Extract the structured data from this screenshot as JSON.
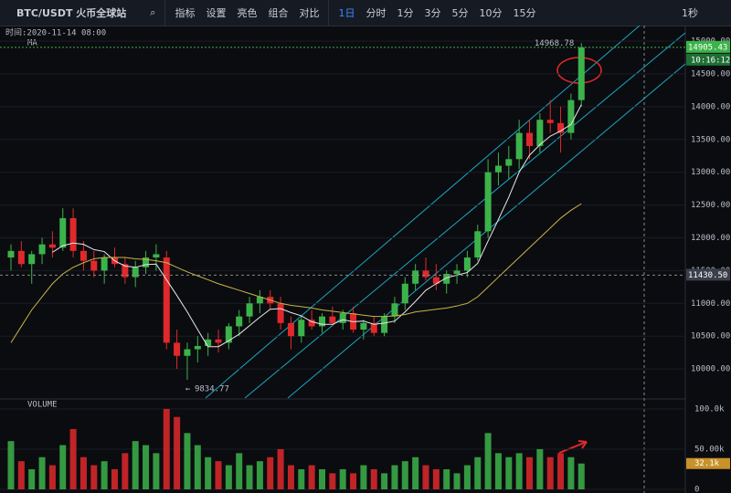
{
  "toolbar": {
    "symbol": "BTC/USDT 火币全球站",
    "buttons": [
      "指标",
      "设置",
      "亮色",
      "组合",
      "对比"
    ],
    "intervals": [
      "1日",
      "分时",
      "1分",
      "3分",
      "5分",
      "10分",
      "15分"
    ],
    "right": "1秒"
  },
  "header": {
    "time": "时间:2020-11-14 08:00",
    "ma": "MA",
    "volume": "VOLUME"
  },
  "chart_data": {
    "type": "candlestick",
    "up_color": "#3cb34a",
    "down_color": "#e0292b",
    "open": [
      11700,
      11800,
      11600,
      11750,
      11900,
      11850,
      12300,
      11800,
      11650,
      11500,
      11700,
      11600,
      11400,
      11550,
      11700,
      11700,
      10400,
      10200,
      10300,
      10350,
      10450,
      10400,
      10650,
      10800,
      11000,
      11100,
      11000,
      10700,
      10500,
      10750,
      10650,
      10800,
      10700,
      10850,
      10600,
      10700,
      10550,
      10800,
      11000,
      11300,
      11500,
      11400,
      11300,
      11450,
      11500,
      11700,
      12100,
      13000,
      13100,
      13200,
      13600,
      13400,
      13800,
      13750,
      13600,
      14100
    ],
    "high": [
      11900,
      11950,
      11800,
      12000,
      12100,
      12450,
      12450,
      11950,
      11800,
      11750,
      11850,
      11700,
      11650,
      11800,
      11900,
      11800,
      10600,
      10400,
      10500,
      10550,
      10600,
      10700,
      10900,
      11100,
      11200,
      11200,
      11100,
      10800,
      10800,
      10900,
      10850,
      10950,
      10900,
      10950,
      10750,
      10800,
      10850,
      11100,
      11400,
      11600,
      11700,
      11600,
      11500,
      11600,
      11800,
      12200,
      13200,
      13300,
      13400,
      13800,
      13800,
      13900,
      14100,
      14000,
      14200,
      14968.78
    ],
    "low": [
      11500,
      11550,
      11300,
      11600,
      11700,
      11800,
      11700,
      11500,
      11400,
      11300,
      11550,
      11300,
      11250,
      11450,
      11500,
      10300,
      10000,
      9834.77,
      10100,
      10200,
      10250,
      10300,
      10500,
      10700,
      10850,
      10900,
      10600,
      10300,
      10400,
      10600,
      10550,
      10650,
      10600,
      10550,
      10450,
      10500,
      10500,
      10700,
      10900,
      11200,
      11350,
      11200,
      11150,
      11300,
      11400,
      11650,
      12000,
      12800,
      12900,
      13050,
      13200,
      13300,
      13600,
      13300,
      13500,
      14000
    ],
    "close": [
      11800,
      11600,
      11750,
      11900,
      11850,
      12300,
      11800,
      11650,
      11500,
      11700,
      11600,
      11400,
      11550,
      11700,
      11750,
      10400,
      10200,
      10300,
      10350,
      10450,
      10400,
      10650,
      10800,
      11000,
      11100,
      11000,
      10700,
      10500,
      10750,
      10650,
      10800,
      10700,
      10850,
      10600,
      10700,
      10550,
      10800,
      11000,
      11300,
      11500,
      11400,
      11300,
      11450,
      11500,
      11700,
      12100,
      13000,
      13100,
      13200,
      13600,
      13400,
      13800,
      13750,
      13600,
      14100,
      14905.43
    ],
    "ma": [
      {
        "color": "#e8e8e8",
        "values": [
          null,
          null,
          null,
          null,
          11780,
          11880,
          11920,
          11900,
          11820,
          11790,
          11650,
          11570,
          11550,
          11590,
          11600,
          11360,
          11120,
          10870,
          10600,
          10340,
          10340,
          10430,
          10530,
          10660,
          10790,
          10910,
          10920,
          10860,
          10810,
          10720,
          10680,
          10680,
          10750,
          10720,
          10730,
          10680,
          10700,
          10730,
          10870,
          11030,
          11200,
          11300,
          11390,
          11430,
          11470,
          11610,
          11950,
          12280,
          12620,
          13000,
          13260,
          13420,
          13550,
          13630,
          13730,
          14030
        ]
      },
      {
        "color": "#c9b44a",
        "values": [
          10400,
          10650,
          10900,
          11100,
          11300,
          11450,
          11550,
          11620,
          11680,
          11700,
          11700,
          11700,
          11680,
          11670,
          11650,
          11620,
          11550,
          11480,
          11420,
          11360,
          11300,
          11250,
          11200,
          11150,
          11100,
          11050,
          11000,
          10970,
          10950,
          10930,
          10900,
          10880,
          10860,
          10840,
          10820,
          10800,
          10800,
          10810,
          10830,
          10870,
          10890,
          10910,
          10930,
          10960,
          11000,
          11100,
          11250,
          11400,
          11550,
          11700,
          11850,
          12000,
          12150,
          12300,
          12420,
          12520
        ]
      }
    ],
    "ylim": [
      9570,
      15070
    ],
    "yticks": [
      {
        "value": 10000,
        "label": "10000.00"
      },
      {
        "value": 10500,
        "label": "10500.00"
      },
      {
        "value": 11000,
        "label": "11000.00"
      },
      {
        "value": 11500,
        "label": "11500.00"
      },
      {
        "value": 12000,
        "label": "12000.00"
      },
      {
        "value": 12500,
        "label": "12500.00"
      },
      {
        "value": 13000,
        "label": "13000.00"
      },
      {
        "value": 13500,
        "label": "13500.00"
      },
      {
        "value": 14000,
        "label": "14000.00"
      },
      {
        "value": 14500,
        "label": "14500.00"
      },
      {
        "value": 15000,
        "label": "15000.00"
      }
    ],
    "crosshair": {
      "value": 11430.5,
      "label": "11430.50"
    },
    "countdown": "10:16:12",
    "volume": [
      60000,
      35000,
      25000,
      40000,
      30000,
      55000,
      75000,
      40000,
      30000,
      35000,
      25000,
      45000,
      60000,
      55000,
      45000,
      100000,
      90000,
      70000,
      55000,
      40000,
      35000,
      30000,
      45000,
      30000,
      35000,
      40000,
      50000,
      30000,
      25000,
      30000,
      25000,
      20000,
      25000,
      20000,
      30000,
      25000,
      20000,
      30000,
      35000,
      40000,
      30000,
      25000,
      25000,
      20000,
      30000,
      40000,
      70000,
      45000,
      40000,
      45000,
      40000,
      50000,
      40000,
      45000,
      40000,
      32100
    ],
    "last_volume_label": "32.1k",
    "vlim": [
      0,
      109000
    ],
    "vticks": [
      {
        "value": 100000,
        "label": "100.0k"
      },
      {
        "value": 50000,
        "label": "50.00k"
      },
      0
    ]
  }
}
